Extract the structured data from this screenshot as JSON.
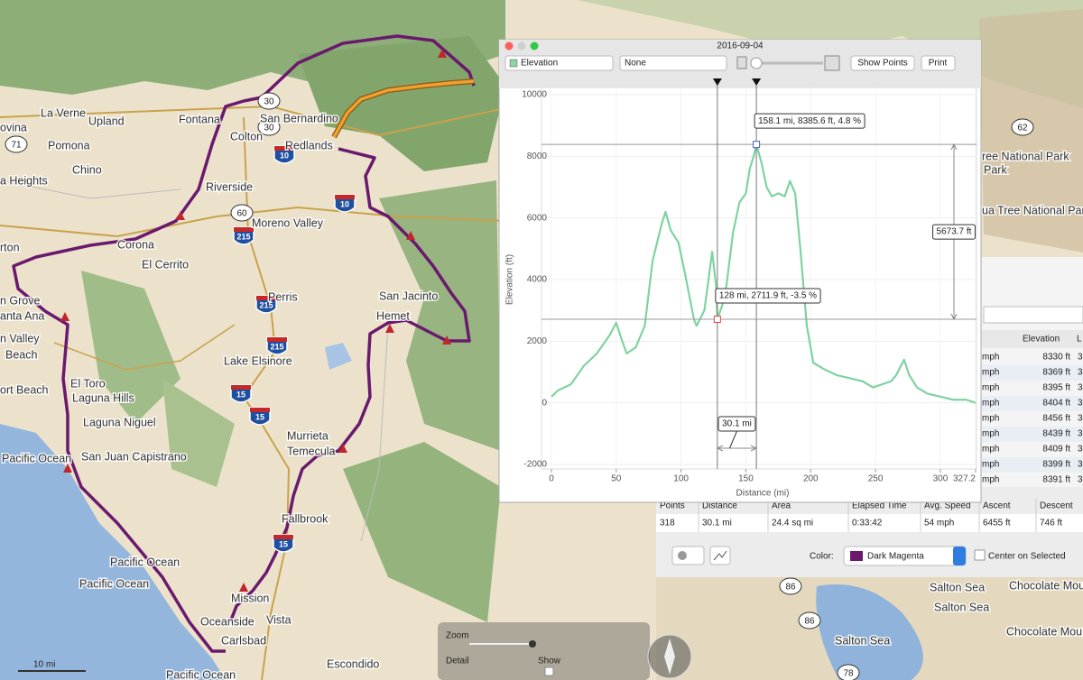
{
  "map": {
    "labels": [
      "La Verne",
      "Upland",
      "Fontana",
      "San Bernardino",
      "ovina",
      "Pomona",
      "Colton",
      "Redlands",
      "Chino",
      "a Heights",
      "Riverside",
      "Moreno Valley",
      "Corona",
      "El Cerrito",
      "rton",
      "Perris",
      "San Jacinto",
      "Hemet",
      "n Grove",
      "anta Ana",
      "n Valley",
      "Beach",
      "Lake Elsinore",
      "El Toro",
      "ort Beach",
      "Laguna Hills",
      "Laguna Niguel",
      "Pacific Ocean",
      "San Juan Capistrano",
      "Murrieta",
      "Temecula",
      "Fallbrook",
      "Pacific Ocean",
      "Pacific Ocean",
      "Mission",
      "Oceanside",
      "Vista",
      "Carlsbad",
      "Escondido",
      "Pacific Ocean",
      "ree National Park",
      "Park",
      "ua Tree National Park",
      "Salton Sea",
      "Salton Sea",
      "Chocolate Mountain",
      "Chocolate Mountain",
      "Salton Sea"
    ],
    "shields": [
      "71",
      "30",
      "30",
      "10",
      "60",
      "215",
      "215",
      "215",
      "15",
      "15",
      "10",
      "15",
      "62",
      "86",
      "86",
      "78"
    ],
    "scale": "10 mi",
    "controls": {
      "zoom": "Zoom",
      "detail": "Detail",
      "show": "Show"
    }
  },
  "window": {
    "title": "2016-09-04",
    "toolbar": {
      "metric": "Elevation",
      "secondary": "None",
      "show_points": "Show Points",
      "print": "Print"
    },
    "chart": {
      "type": "line",
      "ylabel": "Elevation (ft)",
      "xlabel": "Distance (mi)",
      "color": "#7fd3a0",
      "xlim": [
        0,
        327.2
      ],
      "ylim": [
        -2000,
        10000
      ],
      "xticks": [
        0,
        50,
        100,
        150,
        200,
        250,
        300,
        327.2
      ],
      "yticks": [
        -2000,
        0,
        2000,
        4000,
        6000,
        8000,
        10000
      ],
      "grid": true,
      "profile": {
        "x": [
          0,
          5,
          15,
          25,
          35,
          45,
          50,
          53,
          58,
          65,
          72,
          78,
          85,
          88,
          92,
          98,
          103,
          110,
          112,
          118,
          124,
          127,
          128,
          132,
          135,
          140,
          145,
          150,
          153,
          156,
          158.1,
          162,
          166,
          170,
          175,
          180,
          184,
          188,
          192,
          197,
          202,
          210,
          220,
          230,
          240,
          248,
          255,
          262,
          266,
          272,
          276,
          282,
          290,
          300,
          310,
          320,
          327.2
        ],
        "y": [
          200,
          400,
          600,
          1200,
          1600,
          2200,
          2600,
          2200,
          1600,
          1800,
          2500,
          4600,
          5800,
          6200,
          5600,
          5200,
          4200,
          2700,
          2500,
          3000,
          4900,
          3800,
          2711.9,
          3200,
          3800,
          5500,
          6500,
          6800,
          7600,
          8000,
          8385.6,
          7800,
          7000,
          6700,
          6800,
          6700,
          7200,
          6800,
          5000,
          2500,
          1300,
          1100,
          900,
          800,
          700,
          500,
          600,
          700,
          900,
          1400,
          900,
          500,
          300,
          200,
          100,
          100,
          0
        ]
      },
      "cursors": [
        {
          "x": 158.1,
          "y": 8385.6,
          "label": "158.1 mi, 8385.6 ft, 4.8 %"
        },
        {
          "x": 128,
          "y": 2711.9,
          "label": "128 mi, 2711.9 ft, -3.5 %"
        }
      ],
      "rise": {
        "value": 5673.7,
        "label": "5673.7 ft"
      },
      "span": {
        "value": 30.1,
        "label": "30.1 mi"
      }
    }
  },
  "panel": {
    "columns": [
      "Elevation",
      "L"
    ],
    "rows": [
      [
        "mph",
        "8330 ft",
        "3"
      ],
      [
        "mph",
        "8369 ft",
        "3"
      ],
      [
        "mph",
        "8395 ft",
        "3"
      ],
      [
        "mph",
        "8404 ft",
        "3"
      ],
      [
        "mph",
        "8456 ft",
        "3"
      ],
      [
        "mph",
        "8439 ft",
        "3"
      ],
      [
        "mph",
        "8409 ft",
        "3"
      ],
      [
        "mph",
        "8399 ft",
        "3"
      ],
      [
        "mph",
        "8391 ft",
        "3"
      ]
    ],
    "stats": {
      "headers": [
        "Points",
        "Distance",
        "Area",
        "Elapsed Time",
        "Avg. Speed",
        "Ascent",
        "Descent"
      ],
      "values": [
        "318",
        "30.1 mi",
        "24.4 sq mi",
        "0:33:42",
        "54 mph",
        "6455 ft",
        "746 ft"
      ]
    },
    "color_label": "Color:",
    "color_name": "Dark Magenta",
    "center": "Center on Selected"
  }
}
